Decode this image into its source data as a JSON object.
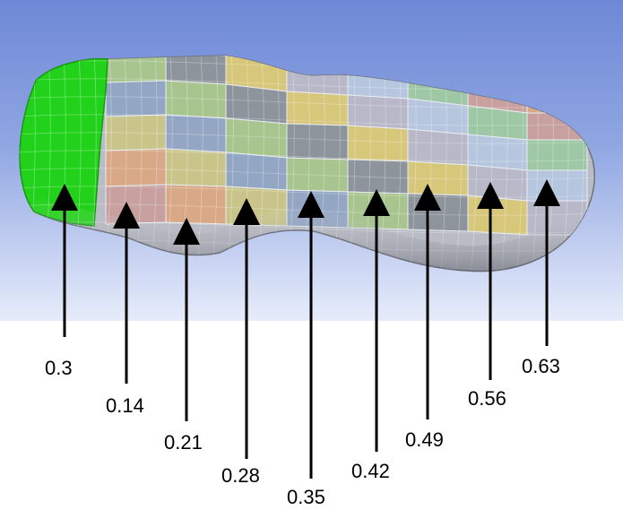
{
  "figure": {
    "background": {
      "viewport_top": "#6e88d6",
      "viewport_bottom": "#e6ecfa",
      "page": "#ffffff"
    },
    "insole": {
      "highlight_color": "#22d21a",
      "edge_color": "#8a8c90",
      "patch_colors": [
        "#a9c58f",
        "#d8a887",
        "#b6c6de",
        "#8d949c",
        "#c9c58a",
        "#9ec7a6",
        "#d7c77b",
        "#93a6c4",
        "#c8a0a0",
        "#b8b8c8"
      ]
    },
    "callouts": [
      {
        "value": "0.3"
      },
      {
        "value": "0.14"
      },
      {
        "value": "0.21"
      },
      {
        "value": "0.28"
      },
      {
        "value": "0.35"
      },
      {
        "value": "0.42"
      },
      {
        "value": "0.49"
      },
      {
        "value": "0.56"
      },
      {
        "value": "0.63"
      }
    ]
  }
}
